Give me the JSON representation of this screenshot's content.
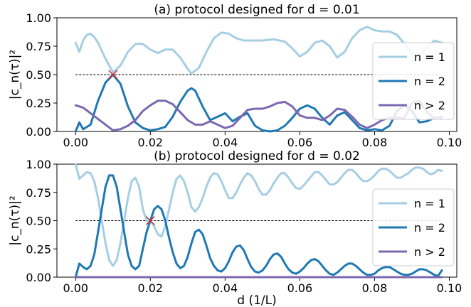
{
  "figure": {
    "xlabel": "d (1/L)",
    "ylabel": "|c_n(τ)|²"
  },
  "chart_data": [
    {
      "type": "line",
      "title": "(a) protocol designed for d = 0.01",
      "xlabel": "",
      "ylabel": "|c_n(τ)|²",
      "xlim": [
        -0.005,
        0.102
      ],
      "ylim": [
        0,
        1.0
      ],
      "xticks": [
        0.0,
        0.02,
        0.04,
        0.06,
        0.08,
        0.1
      ],
      "xtick_labels": [
        "0.00",
        "0.02",
        "0.04",
        "0.06",
        "0.08",
        "0.10"
      ],
      "yticks": [
        0.0,
        0.25,
        0.5,
        0.75,
        1.0
      ],
      "ytick_labels": [
        "0.00",
        "0.25",
        "0.50",
        "0.75",
        "1.00"
      ],
      "legend_position": "right",
      "reference_line": {
        "y": 0.5,
        "style": "dashed",
        "color": "#000000"
      },
      "marker": {
        "x": 0.01,
        "y": 0.5,
        "symbol": "x",
        "color": "#d62728"
      },
      "series": [
        {
          "name": "n = 1",
          "color": "#a6cee3",
          "x": [
            0,
            0.001,
            0.002,
            0.003,
            0.004,
            0.005,
            0.006,
            0.008,
            0.01,
            0.012,
            0.014,
            0.016,
            0.018,
            0.02,
            0.022,
            0.024,
            0.026,
            0.028,
            0.03,
            0.031,
            0.033,
            0.035,
            0.037,
            0.039,
            0.041,
            0.043,
            0.045,
            0.047,
            0.05,
            0.053,
            0.056,
            0.058,
            0.06,
            0.062,
            0.064,
            0.066,
            0.068,
            0.07,
            0.072,
            0.074,
            0.076,
            0.078,
            0.08,
            0.082,
            0.084,
            0.086,
            0.088,
            0.09,
            0.092,
            0.094,
            0.096,
            0.098
          ],
          "y": [
            0.78,
            0.7,
            0.8,
            0.85,
            0.86,
            0.83,
            0.78,
            0.64,
            0.52,
            0.58,
            0.7,
            0.77,
            0.77,
            0.72,
            0.69,
            0.72,
            0.72,
            0.65,
            0.55,
            0.51,
            0.56,
            0.7,
            0.82,
            0.87,
            0.86,
            0.82,
            0.8,
            0.8,
            0.8,
            0.81,
            0.79,
            0.73,
            0.66,
            0.7,
            0.78,
            0.8,
            0.75,
            0.65,
            0.7,
            0.82,
            0.89,
            0.92,
            0.89,
            0.88,
            0.88,
            0.85,
            0.77,
            0.68,
            0.65,
            0.74,
            0.8,
            0.78
          ]
        },
        {
          "name": "n = 2",
          "color": "#1f78b4",
          "x": [
            0,
            0.001,
            0.002,
            0.004,
            0.006,
            0.008,
            0.01,
            0.012,
            0.014,
            0.016,
            0.018,
            0.02,
            0.022,
            0.024,
            0.026,
            0.028,
            0.03,
            0.031,
            0.032,
            0.034,
            0.036,
            0.038,
            0.04,
            0.042,
            0.044,
            0.046,
            0.048,
            0.05,
            0.052,
            0.054,
            0.056,
            0.058,
            0.06,
            0.062,
            0.064,
            0.066,
            0.068,
            0.07,
            0.072,
            0.074,
            0.076,
            0.078,
            0.08,
            0.082,
            0.084,
            0.086,
            0.088,
            0.09,
            0.092,
            0.094,
            0.096,
            0.098
          ],
          "y": [
            0.0,
            0.08,
            0.02,
            0.06,
            0.27,
            0.43,
            0.5,
            0.42,
            0.22,
            0.08,
            0.03,
            0.01,
            0.02,
            0.04,
            0.13,
            0.26,
            0.36,
            0.38,
            0.36,
            0.22,
            0.1,
            0.13,
            0.16,
            0.09,
            0.13,
            0.16,
            0.05,
            0.01,
            0.0,
            0.01,
            0.05,
            0.12,
            0.2,
            0.23,
            0.2,
            0.12,
            0.06,
            0.14,
            0.17,
            0.1,
            0.03,
            0.01,
            0.02,
            0.01,
            0.05,
            0.18,
            0.23,
            0.18,
            0.08,
            0.09,
            0.12,
            0.13
          ]
        },
        {
          "name": "n > 2",
          "color": "#7b68b0",
          "x": [
            0,
            0.002,
            0.004,
            0.006,
            0.008,
            0.01,
            0.012,
            0.014,
            0.016,
            0.018,
            0.02,
            0.022,
            0.024,
            0.026,
            0.028,
            0.03,
            0.032,
            0.034,
            0.036,
            0.038,
            0.04,
            0.042,
            0.044,
            0.046,
            0.048,
            0.05,
            0.052,
            0.054,
            0.056,
            0.058,
            0.06,
            0.062,
            0.064,
            0.066,
            0.068,
            0.07,
            0.072,
            0.074,
            0.076,
            0.078,
            0.08,
            0.082,
            0.084,
            0.086,
            0.088,
            0.09,
            0.092,
            0.094,
            0.096,
            0.098
          ],
          "y": [
            0.23,
            0.21,
            0.16,
            0.11,
            0.06,
            0.01,
            0.02,
            0.05,
            0.1,
            0.18,
            0.23,
            0.27,
            0.27,
            0.24,
            0.17,
            0.1,
            0.06,
            0.06,
            0.09,
            0.06,
            0.03,
            0.05,
            0.12,
            0.19,
            0.2,
            0.2,
            0.22,
            0.25,
            0.26,
            0.22,
            0.14,
            0.12,
            0.12,
            0.1,
            0.14,
            0.2,
            0.19,
            0.13,
            0.06,
            0.03,
            0.06,
            0.1,
            0.12,
            0.12,
            0.12,
            0.25,
            0.27,
            0.17,
            0.12,
            0.12
          ]
        }
      ]
    },
    {
      "type": "line",
      "title": "(b) protocol designed for d = 0.02",
      "xlabel": "d (1/L)",
      "ylabel": "|c_n(τ)|²",
      "xlim": [
        -0.005,
        0.102
      ],
      "ylim": [
        0,
        1.0
      ],
      "xticks": [
        0.0,
        0.02,
        0.04,
        0.06,
        0.08,
        0.1
      ],
      "xtick_labels": [
        "0.00",
        "0.02",
        "0.04",
        "0.06",
        "0.08",
        "0.10"
      ],
      "yticks": [
        0.0,
        0.25,
        0.5,
        0.75,
        1.0
      ],
      "ytick_labels": [
        "0.00",
        "0.25",
        "0.50",
        "0.75",
        "1.00"
      ],
      "legend_position": "right",
      "reference_line": {
        "y": 0.5,
        "style": "dashed",
        "color": "#000000"
      },
      "marker": {
        "x": 0.02,
        "y": 0.5,
        "symbol": "x",
        "color": "#d62728"
      },
      "series": [
        {
          "name": "n = 1",
          "color": "#a6cee3",
          "x": [
            0,
            0.001,
            0.002,
            0.003,
            0.004,
            0.005,
            0.006,
            0.007,
            0.008,
            0.009,
            0.01,
            0.011,
            0.012,
            0.013,
            0.014,
            0.015,
            0.016,
            0.017,
            0.018,
            0.019,
            0.02,
            0.021,
            0.022,
            0.023,
            0.024,
            0.025,
            0.026,
            0.027,
            0.028,
            0.029,
            0.03,
            0.031,
            0.032,
            0.033,
            0.034,
            0.035,
            0.036,
            0.037,
            0.038,
            0.039,
            0.04,
            0.041,
            0.042,
            0.043,
            0.044,
            0.045,
            0.046,
            0.047,
            0.048,
            0.049,
            0.05,
            0.051,
            0.052,
            0.053,
            0.054,
            0.055,
            0.056,
            0.057,
            0.058,
            0.059,
            0.06,
            0.061,
            0.062,
            0.063,
            0.064,
            0.065,
            0.066,
            0.067,
            0.068,
            0.069,
            0.07,
            0.071,
            0.072,
            0.073,
            0.074,
            0.075,
            0.076,
            0.077,
            0.078,
            0.079,
            0.08,
            0.081,
            0.082,
            0.083,
            0.084,
            0.085,
            0.086,
            0.087,
            0.088,
            0.089,
            0.09,
            0.091,
            0.092,
            0.093,
            0.094,
            0.095,
            0.096,
            0.097,
            0.098
          ],
          "y": [
            1.0,
            0.87,
            0.9,
            0.93,
            0.92,
            0.85,
            0.7,
            0.5,
            0.3,
            0.15,
            0.1,
            0.15,
            0.3,
            0.5,
            0.7,
            0.85,
            0.88,
            0.8,
            0.6,
            0.5,
            0.5,
            0.45,
            0.38,
            0.36,
            0.45,
            0.6,
            0.75,
            0.87,
            0.9,
            0.85,
            0.75,
            0.62,
            0.58,
            0.62,
            0.7,
            0.8,
            0.88,
            0.92,
            0.91,
            0.85,
            0.77,
            0.7,
            0.7,
            0.75,
            0.82,
            0.88,
            0.92,
            0.9,
            0.85,
            0.78,
            0.73,
            0.73,
            0.77,
            0.83,
            0.88,
            0.92,
            0.92,
            0.88,
            0.83,
            0.79,
            0.78,
            0.81,
            0.85,
            0.89,
            0.93,
            0.93,
            0.9,
            0.86,
            0.82,
            0.82,
            0.84,
            0.88,
            0.92,
            0.95,
            0.95,
            0.92,
            0.88,
            0.85,
            0.85,
            0.87,
            0.9,
            0.94,
            0.96,
            0.96,
            0.94,
            0.91,
            0.88,
            0.88,
            0.9,
            0.92,
            0.95,
            0.97,
            0.97,
            0.96,
            0.93,
            0.91,
            0.92,
            0.95,
            0.94
          ]
        },
        {
          "name": "n = 2",
          "color": "#1f78b4",
          "x": [
            0,
            0.001,
            0.002,
            0.003,
            0.004,
            0.005,
            0.006,
            0.007,
            0.008,
            0.009,
            0.01,
            0.011,
            0.012,
            0.013,
            0.014,
            0.015,
            0.016,
            0.017,
            0.018,
            0.019,
            0.02,
            0.021,
            0.022,
            0.023,
            0.024,
            0.025,
            0.026,
            0.027,
            0.028,
            0.029,
            0.03,
            0.031,
            0.032,
            0.033,
            0.034,
            0.035,
            0.036,
            0.037,
            0.038,
            0.039,
            0.04,
            0.041,
            0.042,
            0.043,
            0.044,
            0.045,
            0.046,
            0.047,
            0.048,
            0.049,
            0.05,
            0.051,
            0.052,
            0.053,
            0.054,
            0.055,
            0.056,
            0.057,
            0.058,
            0.059,
            0.06,
            0.061,
            0.062,
            0.063,
            0.064,
            0.065,
            0.066,
            0.067,
            0.068,
            0.069,
            0.07,
            0.071,
            0.072,
            0.073,
            0.074,
            0.075,
            0.076,
            0.077,
            0.078,
            0.079,
            0.08,
            0.081,
            0.082,
            0.083,
            0.084,
            0.085,
            0.086,
            0.087,
            0.088,
            0.089,
            0.09,
            0.091,
            0.092,
            0.093,
            0.094,
            0.095,
            0.096,
            0.097,
            0.098
          ],
          "y": [
            0.0,
            0.12,
            0.09,
            0.07,
            0.1,
            0.2,
            0.4,
            0.6,
            0.8,
            0.9,
            0.9,
            0.8,
            0.6,
            0.4,
            0.2,
            0.1,
            0.07,
            0.1,
            0.25,
            0.4,
            0.5,
            0.6,
            0.63,
            0.6,
            0.5,
            0.35,
            0.22,
            0.12,
            0.08,
            0.1,
            0.18,
            0.3,
            0.4,
            0.42,
            0.38,
            0.28,
            0.17,
            0.1,
            0.06,
            0.05,
            0.08,
            0.14,
            0.22,
            0.27,
            0.28,
            0.24,
            0.16,
            0.09,
            0.05,
            0.04,
            0.06,
            0.1,
            0.16,
            0.2,
            0.21,
            0.18,
            0.12,
            0.07,
            0.04,
            0.03,
            0.05,
            0.08,
            0.12,
            0.15,
            0.16,
            0.14,
            0.1,
            0.06,
            0.03,
            0.02,
            0.04,
            0.07,
            0.1,
            0.12,
            0.12,
            0.1,
            0.07,
            0.04,
            0.02,
            0.02,
            0.03,
            0.06,
            0.08,
            0.09,
            0.09,
            0.07,
            0.05,
            0.03,
            0.02,
            0.02,
            0.03,
            0.05,
            0.07,
            0.07,
            0.06,
            0.04,
            0.02,
            0.01,
            0.06
          ]
        },
        {
          "name": "n > 2",
          "color": "#7b68b0",
          "x": [
            0,
            0.098
          ],
          "y": [
            0.0,
            0.0
          ]
        }
      ]
    }
  ]
}
